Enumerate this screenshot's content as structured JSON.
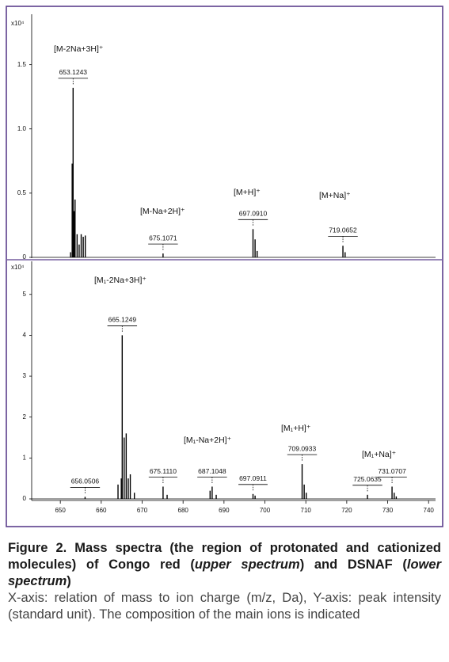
{
  "chart_data": [
    {
      "type": "stem",
      "y_unit_label": "x10⁴",
      "color": "#000000",
      "x": [
        652.5,
        652.9,
        653.1243,
        653.4,
        653.6,
        654.1,
        654.6,
        655.1,
        655.6,
        656.1,
        675.1071,
        697.091,
        697.6,
        698.1,
        719.0652,
        719.6
      ],
      "values": [
        0.04,
        0.73,
        1.32,
        0.36,
        0.45,
        0.18,
        0.1,
        0.18,
        0.16,
        0.17,
        0.03,
        0.22,
        0.14,
        0.05,
        0.09,
        0.04
      ],
      "xlim": [
        643,
        741.7
      ],
      "ylim": [
        0,
        1.88
      ],
      "yticks": [
        0,
        0.5,
        {
          "value": 1,
          "label": "1.0"
        },
        1.5
      ],
      "peak_labels": [
        653.1243,
        675.1071,
        {
          "value": 697.091,
          "label": "697.0910"
        },
        719.0652
      ],
      "annotations": [
        "[M-2Na+3H]⁺",
        "[M-Na+2H]⁺",
        "[M+H]⁺",
        "[M+Na]⁺"
      ]
    },
    {
      "type": "stem",
      "y_unit_label": "x10⁴",
      "color": "#000000",
      "x": [
        656.0506,
        664.1,
        664.9,
        665.1249,
        665.6,
        666.1,
        666.6,
        667.1,
        668.1,
        675.111,
        676.1,
        686.6,
        687.1048,
        688.1,
        697.0911,
        697.6,
        709.0933,
        709.6,
        710.1,
        725.0635,
        731.0707,
        731.6,
        732.1
      ],
      "values": [
        0.05,
        0.35,
        0.5,
        4.0,
        1.5,
        1.6,
        0.5,
        0.6,
        0.15,
        0.3,
        0.1,
        0.2,
        0.3,
        0.1,
        0.12,
        0.08,
        0.85,
        0.35,
        0.15,
        0.1,
        0.3,
        0.15,
        0.06
      ],
      "xlim": [
        643,
        741.7
      ],
      "ylim": [
        0,
        5.77
      ],
      "yticks": [
        0,
        1,
        2,
        3,
        4,
        5
      ],
      "xticks": [
        650,
        660,
        670,
        680,
        690,
        700,
        710,
        720,
        730,
        740
      ],
      "peak_labels": [
        656.0506,
        665.1249,
        {
          "value": 675.111,
          "label": "675.1110"
        },
        687.1048,
        697.0911,
        709.0933,
        725.0635,
        731.0707
      ],
      "annotations": [
        "[M₁-2Na+3H]⁺",
        "[M₁-Na+2H]⁺",
        "[M₁+H]⁺",
        "[M₁+Na]⁺"
      ]
    }
  ],
  "caption": {
    "title": [
      "Figure 2. Mass spectra (the region of protonated and cationized molecules) of Congo red (",
      "upper spectrum",
      ") and DSNAF (",
      "lower spectrum",
      ")"
    ],
    "body": "X-axis: relation of mass to ion charge (m/z, Da), Y-axis: peak intensity (standard unit). The composition of the main ions is indicated"
  }
}
